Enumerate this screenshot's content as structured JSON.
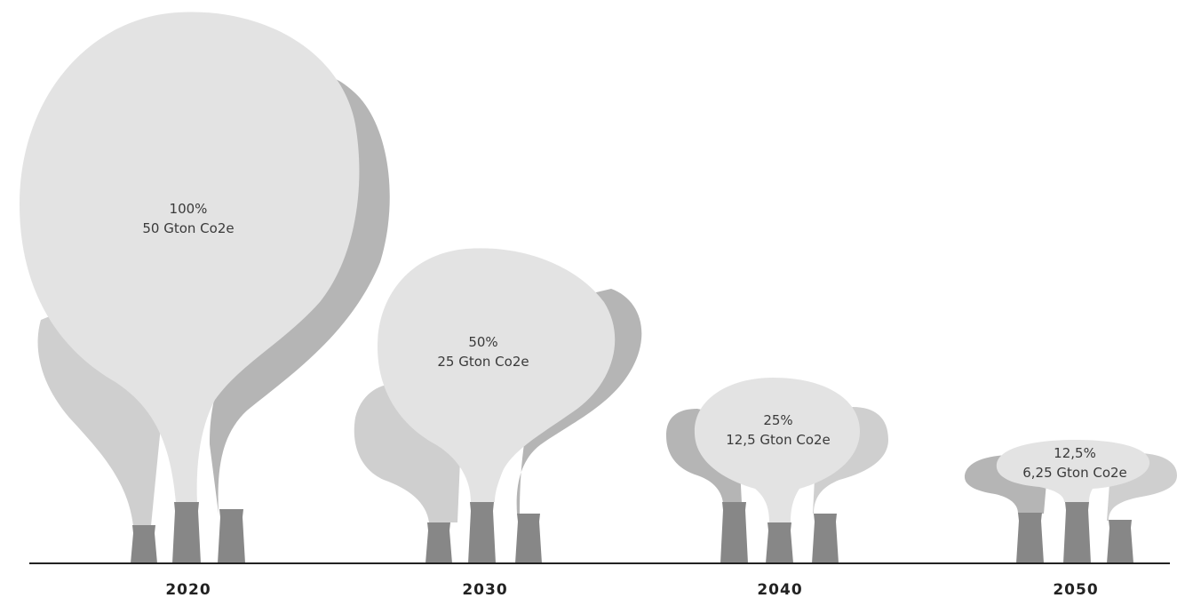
{
  "colors": {
    "cloud_light": "#e3e3e3",
    "cloud_mid": "#cfcfcf",
    "cloud_dark": "#b5b5b5",
    "chimney": "#878787",
    "ground": "#222222"
  },
  "chart_data": {
    "type": "pictogram",
    "unit": "Gton Co2e",
    "categories": [
      "2020",
      "2030",
      "2040",
      "2050"
    ],
    "values": [
      50,
      25,
      12.5,
      6.25
    ],
    "percent": [
      100,
      50,
      25,
      12.5
    ],
    "labels": [
      {
        "percent": "100%",
        "amount": "50 Gton Co2e"
      },
      {
        "percent": "50%",
        "amount": "25 Gton Co2e"
      },
      {
        "percent": "25%",
        "amount": "12,5 Gton Co2e"
      },
      {
        "percent": "12,5%",
        "amount": "6,25 Gton Co2e"
      }
    ]
  }
}
